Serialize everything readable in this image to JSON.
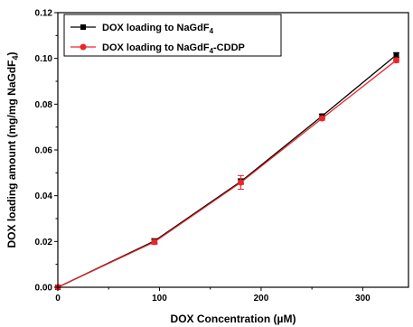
{
  "chart_data": {
    "type": "line",
    "xlabel": "DOX Concentration (µM)",
    "ylabel": "DOX loading amount (mg/mg NaGdF4)",
    "xlim": [
      0,
      345
    ],
    "ylim": [
      0,
      0.12
    ],
    "xticks": [
      0,
      100,
      200,
      300
    ],
    "yticks": [
      "0.00",
      "0.02",
      "0.04",
      "0.06",
      "0.08",
      "0.10",
      "0.12"
    ],
    "legend_position": "top-left",
    "x": [
      0,
      95,
      180,
      260,
      333
    ],
    "series": [
      {
        "name": "DOX loading to NaGdF4",
        "color": "#000000",
        "marker": "square",
        "values": [
          0,
          0.0202,
          0.0462,
          0.0748,
          0.1015
        ],
        "errors": [
          0,
          0.001,
          0.0012,
          0.0008,
          0.001
        ]
      },
      {
        "name": "DOX loading to NaGdF4-CDDP",
        "color": "#e8262a",
        "marker": "circle",
        "values": [
          0,
          0.0198,
          0.0458,
          0.0738,
          0.0992
        ],
        "errors": [
          0,
          0.001,
          0.003,
          0.0008,
          0.001
        ]
      }
    ]
  }
}
